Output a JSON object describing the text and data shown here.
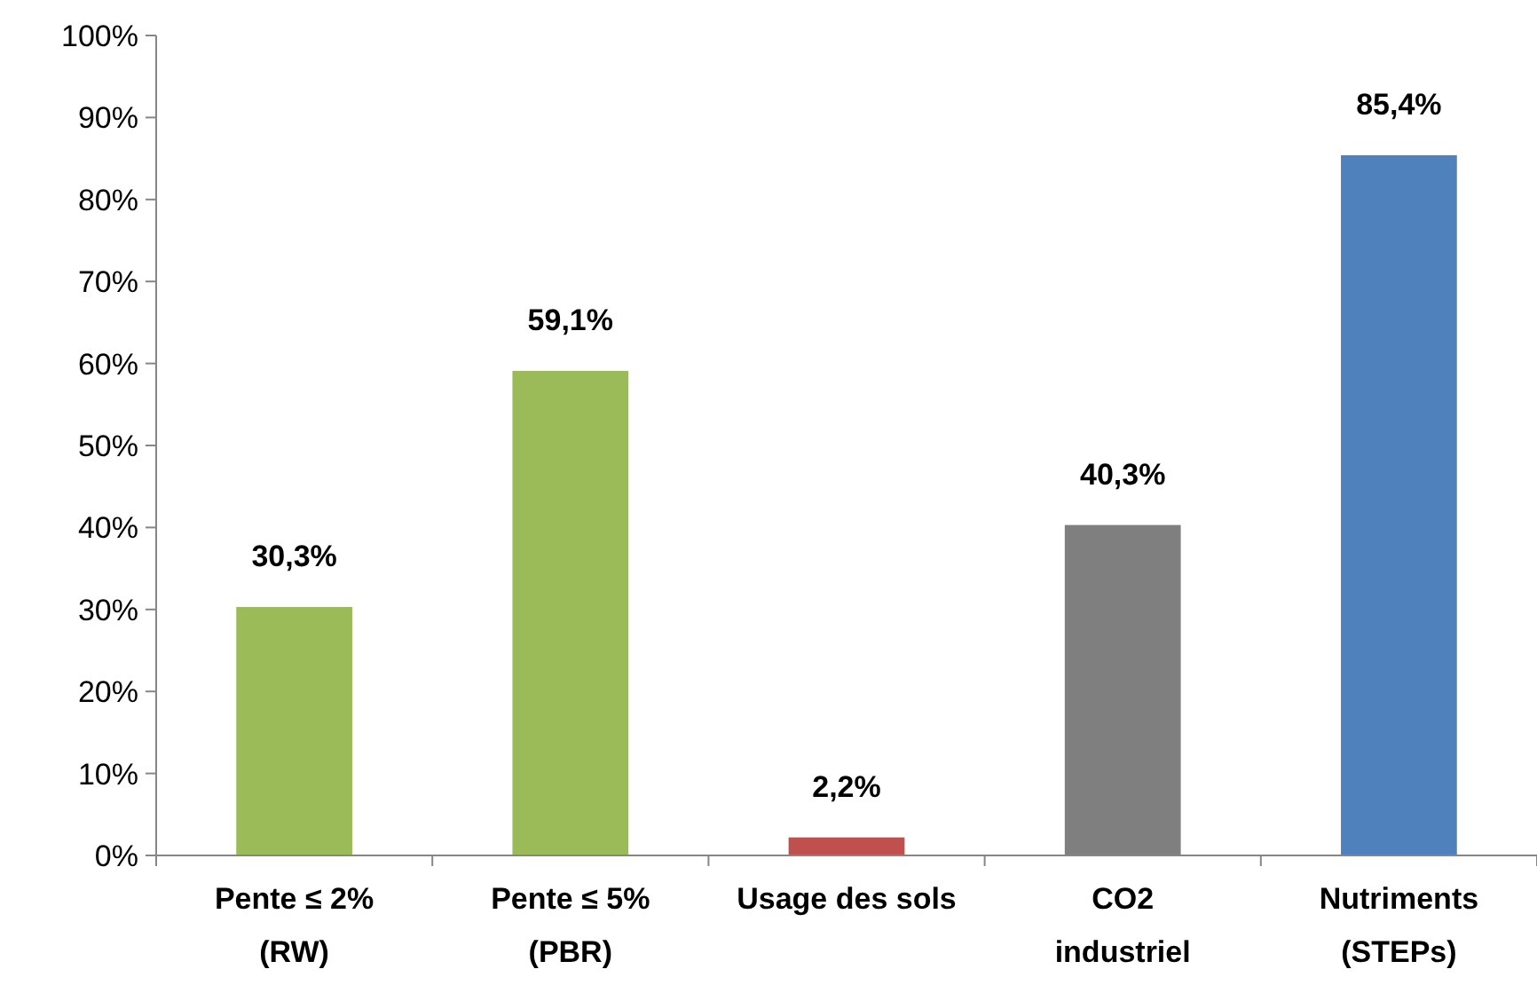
{
  "chart_data": {
    "type": "bar",
    "categories": [
      "Pente ≤ 2%\n(RW)",
      "Pente ≤ 5%\n(PBR)",
      "Usage des sols",
      "CO2\nindustriel",
      "Nutriments\n(STEPs)"
    ],
    "values": [
      30.3,
      59.1,
      2.2,
      40.3,
      85.4
    ],
    "colors": [
      "#9bbb59",
      "#9bbb59",
      "#c0504d",
      "#7f7f7f",
      "#4f81bd"
    ],
    "value_labels": [
      "30,3%",
      "59,1%",
      "2,2%",
      "40,3%",
      "85,4%"
    ],
    "ylim": [
      0,
      100
    ],
    "yticks": [
      {
        "value": 0,
        "label": "0%"
      },
      {
        "value": 10,
        "label": "10%"
      },
      {
        "value": 20,
        "label": "20%"
      },
      {
        "value": 30,
        "label": "30%"
      },
      {
        "value": 40,
        "label": "40%"
      },
      {
        "value": 50,
        "label": "50%"
      },
      {
        "value": 60,
        "label": "60%"
      },
      {
        "value": 70,
        "label": "70%"
      },
      {
        "value": 80,
        "label": "80%"
      },
      {
        "value": 90,
        "label": "90%"
      },
      {
        "value": 100,
        "label": "100%"
      }
    ],
    "grid": false
  }
}
